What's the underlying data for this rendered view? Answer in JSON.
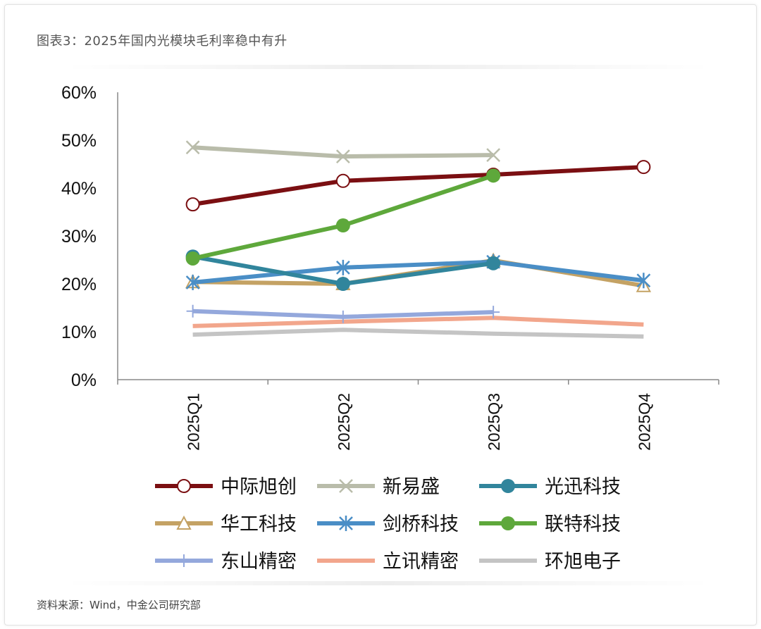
{
  "title": "图表3：2025年国内光模块毛利率稳中有升",
  "source": "资料来源：Wind，中金公司研究部",
  "chart_data": {
    "type": "line",
    "title": "2025年国内光模块毛利率稳中有升",
    "xlabel": "",
    "ylabel": "",
    "categories": [
      "2025Q1",
      "2025Q2",
      "2025Q3",
      "2025Q4"
    ],
    "ylim": [
      0,
      60
    ],
    "yticks": [
      "0%",
      "10%",
      "20%",
      "30%",
      "40%",
      "50%",
      "60%"
    ],
    "grid": false,
    "legend_position": "bottom",
    "series": [
      {
        "name": "中际旭创",
        "color": "#7b0f12",
        "marker": "open-circle",
        "values": [
          36.6,
          41.5,
          42.8,
          44.4
        ]
      },
      {
        "name": "新易盛",
        "color": "#b9bcaa",
        "marker": "x",
        "values": [
          48.5,
          46.6,
          46.9,
          null
        ]
      },
      {
        "name": "光迅科技",
        "color": "#31859c",
        "marker": "filled-circle",
        "values": [
          25.7,
          20.0,
          24.3,
          null
        ]
      },
      {
        "name": "华工科技",
        "color": "#c4a264",
        "marker": "open-triangle",
        "values": [
          20.4,
          20.0,
          24.9,
          19.6
        ]
      },
      {
        "name": "剑桥科技",
        "color": "#4a8ec6",
        "marker": "star",
        "values": [
          20.3,
          23.4,
          24.6,
          20.7
        ]
      },
      {
        "name": "联特科技",
        "color": "#5ea83b",
        "marker": "filled-circle",
        "values": [
          25.3,
          32.2,
          42.6,
          null
        ]
      },
      {
        "name": "东山精密",
        "color": "#94a8dc",
        "marker": "plus",
        "values": [
          14.3,
          13.1,
          14.1,
          null
        ]
      },
      {
        "name": "立讯精密",
        "color": "#f2a68c",
        "marker": "none",
        "values": [
          11.2,
          12.1,
          12.9,
          11.5
        ]
      },
      {
        "name": "环旭电子",
        "color": "#c4c4c4",
        "marker": "none",
        "values": [
          9.4,
          10.4,
          9.6,
          9.0
        ]
      }
    ]
  }
}
